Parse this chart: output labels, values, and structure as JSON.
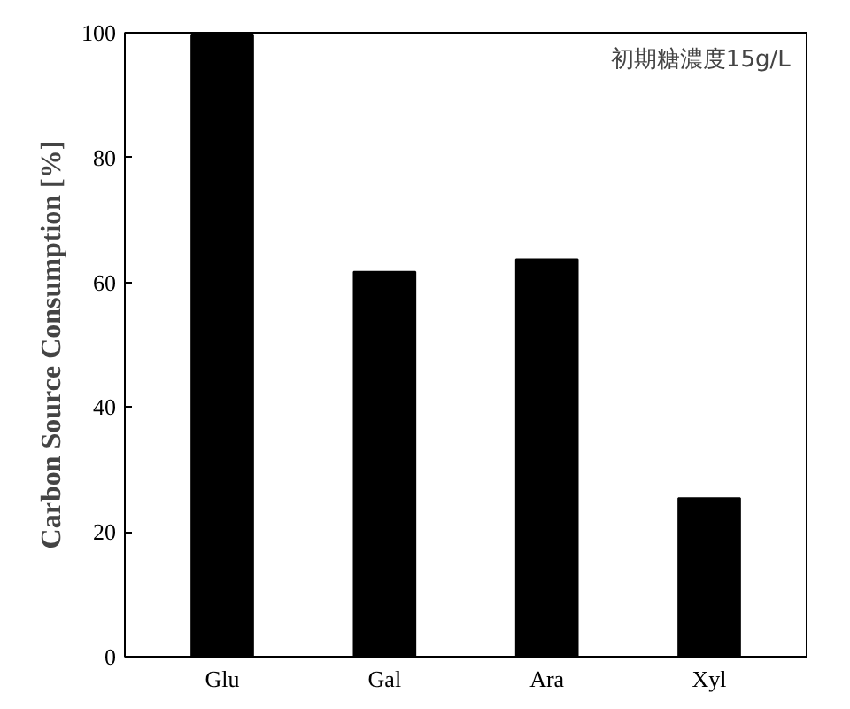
{
  "chart_data": {
    "type": "bar",
    "ylabel": "Carbon Source Consumption [%]",
    "categories": [
      "Glu",
      "Gal",
      "Ara",
      "Xyl"
    ],
    "values": [
      99.7,
      61.7,
      63.7,
      25.4
    ],
    "color": "#000000",
    "ylim": [
      0,
      100
    ],
    "yticks": [
      0,
      20,
      40,
      60,
      80,
      100
    ],
    "grid": false,
    "annotations": [
      "初期糖濃度15g/L"
    ]
  }
}
